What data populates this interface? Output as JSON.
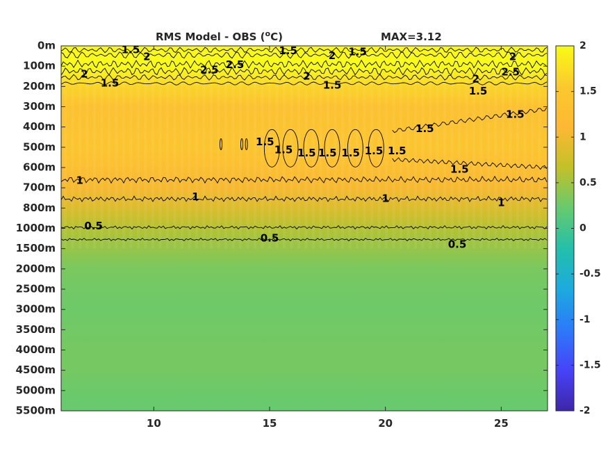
{
  "chart_data": {
    "type": "heatmap",
    "title": "RMS Model - OBS (",
    "title_sup": "o",
    "title_unit": "C)",
    "max_label": "MAX=3.12",
    "x": {
      "ticks": [
        10,
        15,
        20,
        25
      ],
      "lim": [
        6,
        27
      ]
    },
    "y": {
      "ticks": [
        "0m",
        "100m",
        "200m",
        "300m",
        "400m",
        "500m",
        "600m",
        "700m",
        "800m",
        "1000m",
        "1500m",
        "2000m",
        "2500m",
        "3000m",
        "3500m",
        "4000m",
        "4500m",
        "5000m",
        "5500m"
      ]
    },
    "colorbar": {
      "lim": [
        -2,
        2
      ],
      "ticks": [
        "2",
        "1.5",
        "1",
        "0.5",
        "0",
        "-0.5",
        "-1",
        "-1.5",
        "-2"
      ],
      "colormap": [
        "#3e26a8",
        "#4743f8",
        "#2c7af9",
        "#1caadf",
        "#24bfaa",
        "#66ca6e",
        "#c2c128",
        "#feb833",
        "#fac92e",
        "#f9fb15"
      ]
    },
    "field_profile": [
      {
        "level": 0,
        "value": 1.95
      },
      {
        "level": 1,
        "value": 2.3
      },
      {
        "level": 2,
        "value": 1.65
      },
      {
        "level": 3,
        "value": 1.35
      },
      {
        "level": 4,
        "value": 1.4
      },
      {
        "level": 5,
        "value": 1.45
      },
      {
        "level": 6,
        "value": 1.3
      },
      {
        "level": 7,
        "value": 1.05
      },
      {
        "level": 8,
        "value": 0.85
      },
      {
        "level": 9,
        "value": 0.6
      },
      {
        "level": 10,
        "value": 0.45
      },
      {
        "level": 11,
        "value": 0.32
      },
      {
        "level": 12,
        "value": 0.28
      },
      {
        "level": 13,
        "value": 0.26
      },
      {
        "level": 14,
        "value": 0.28
      },
      {
        "level": 15,
        "value": 0.3
      },
      {
        "level": 16,
        "value": 0.3
      },
      {
        "level": 17,
        "value": 0.25
      },
      {
        "level": 18,
        "value": 0.22
      }
    ],
    "contour_labels": [
      {
        "text": "1.5",
        "x": 9.0,
        "level": 0.2
      },
      {
        "text": "2",
        "x": 9.7,
        "level": 0.55
      },
      {
        "text": "2",
        "x": 7.0,
        "level": 1.4
      },
      {
        "text": "2.5",
        "x": 12.4,
        "level": 1.2
      },
      {
        "text": "2.5",
        "x": 13.5,
        "level": 0.95
      },
      {
        "text": "1.5",
        "x": 15.8,
        "level": 0.25
      },
      {
        "text": "2",
        "x": 17.7,
        "level": 0.5
      },
      {
        "text": "1.5",
        "x": 18.8,
        "level": 0.3
      },
      {
        "text": "2",
        "x": 16.6,
        "level": 1.5
      },
      {
        "text": "1.5",
        "x": 8.1,
        "level": 1.85
      },
      {
        "text": "1.5",
        "x": 17.7,
        "level": 1.95
      },
      {
        "text": "2",
        "x": 23.9,
        "level": 1.65
      },
      {
        "text": "2",
        "x": 25.5,
        "level": 0.55
      },
      {
        "text": "2.5",
        "x": 25.4,
        "level": 1.3
      },
      {
        "text": "1.5",
        "x": 24.0,
        "level": 2.25
      },
      {
        "text": "1.5",
        "x": 25.6,
        "level": 3.4
      },
      {
        "text": "1.5",
        "x": 21.7,
        "level": 4.1
      },
      {
        "text": "1.5",
        "x": 14.8,
        "level": 4.75
      },
      {
        "text": "1.5",
        "x": 15.6,
        "level": 5.15
      },
      {
        "text": "1.5",
        "x": 16.6,
        "level": 5.3
      },
      {
        "text": "1.5",
        "x": 17.5,
        "level": 5.3
      },
      {
        "text": "1.5",
        "x": 18.5,
        "level": 5.3
      },
      {
        "text": "1.5",
        "x": 19.5,
        "level": 5.2
      },
      {
        "text": "1.5",
        "x": 20.5,
        "level": 5.2
      },
      {
        "text": "1.5",
        "x": 23.2,
        "level": 6.1
      },
      {
        "text": "1",
        "x": 6.8,
        "level": 6.65
      },
      {
        "text": "1",
        "x": 11.8,
        "level": 7.45
      },
      {
        "text": "1",
        "x": 20.0,
        "level": 7.55
      },
      {
        "text": "1",
        "x": 25.0,
        "level": 7.75
      },
      {
        "text": "0.5",
        "x": 7.4,
        "level": 8.9
      },
      {
        "text": "0.5",
        "x": 15.0,
        "level": 9.5
      },
      {
        "text": "0.5",
        "x": 23.1,
        "level": 9.8
      }
    ]
  }
}
